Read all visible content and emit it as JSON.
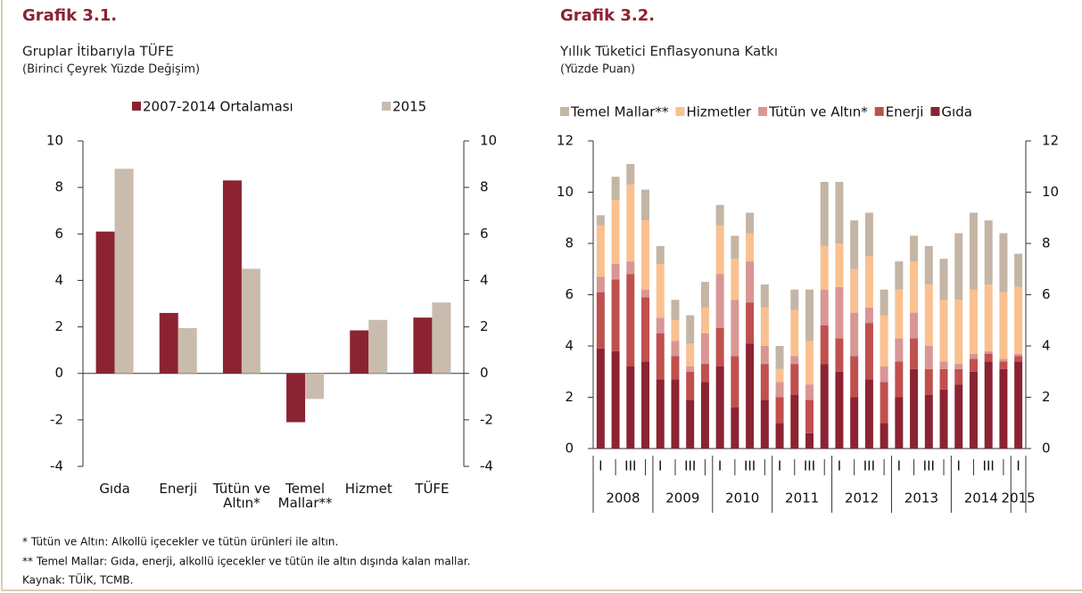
{
  "chart_data": [
    {
      "type": "bar",
      "title": "Grafik 3.1.",
      "subtitle": "Gruplar İtibarıyla TÜFE",
      "note": "(Birinci Çeyrek Yüzde Değişim)",
      "categories": [
        "Gıda",
        "Enerji",
        "Tütün ve Altın*",
        "Temel Mallar**",
        "Hizmet",
        "TÜFE"
      ],
      "series": [
        {
          "name": "2007-2014 Ortalaması",
          "color": "#8b2332",
          "values": [
            6.1,
            2.6,
            8.3,
            -2.1,
            1.85,
            2.4
          ]
        },
        {
          "name": "2015",
          "color": "#c9bcae",
          "values": [
            8.8,
            1.95,
            4.5,
            -1.1,
            2.3,
            3.05
          ]
        }
      ],
      "ylim": [
        -4,
        10
      ],
      "yticks": [
        -4,
        -2,
        0,
        2,
        4,
        6,
        8,
        10
      ],
      "y2lim": [
        -4,
        10
      ],
      "y2ticks": [
        -4,
        -2,
        0,
        2,
        4,
        6,
        8,
        10
      ],
      "legend": "top",
      "grid": false
    },
    {
      "type": "stacked_bar",
      "title": "Grafik 3.2.",
      "subtitle": "Yıllık Tüketici Enflasyonuna Katkı",
      "note": "(Yüzde Puan)",
      "categories": [
        "I",
        null,
        "III",
        null,
        "I",
        null,
        "III",
        null,
        "I",
        null,
        "III",
        null,
        "I",
        null,
        "III",
        null,
        "I",
        null,
        "III",
        null,
        "I",
        null,
        "III",
        null,
        "I",
        null,
        "III",
        null,
        "I"
      ],
      "years": [
        "2008",
        "2009",
        "2010",
        "2011",
        "2012",
        "2013",
        "2014",
        "2015"
      ],
      "series": [
        {
          "name": "Temel Mallar**",
          "color": "#c4b5a5",
          "values": [
            0.4,
            0.9,
            0.8,
            1.2,
            0.7,
            0.8,
            1.1,
            1.0,
            0.8,
            0.9,
            0.8,
            0.9,
            0.9,
            0.8,
            2.0,
            2.5,
            2.4,
            1.9,
            1.7,
            1.0,
            1.1,
            1.0,
            1.5,
            1.6,
            2.6,
            3.0,
            2.5,
            2.3,
            1.3
          ]
        },
        {
          "name": "Hizmetler",
          "color": "#fac090",
          "values": [
            2.0,
            2.5,
            3.0,
            2.7,
            2.1,
            0.8,
            0.9,
            1.0,
            1.9,
            1.6,
            1.1,
            1.5,
            0.5,
            1.8,
            1.7,
            1.7,
            1.7,
            1.7,
            2.0,
            2.0,
            1.9,
            2.0,
            2.4,
            2.4,
            2.5,
            2.5,
            2.6,
            2.6,
            2.6
          ]
        },
        {
          "name": "Tütün ve Altın*",
          "color": "#d99694",
          "values": [
            0.6,
            0.6,
            0.5,
            0.3,
            0.6,
            0.6,
            0.2,
            1.2,
            2.1,
            2.2,
            1.6,
            0.7,
            0.6,
            0.3,
            0.6,
            1.4,
            2.0,
            1.7,
            0.6,
            0.6,
            0.9,
            1.0,
            0.9,
            0.3,
            0.2,
            0.2,
            0.1,
            0.1,
            0.1
          ]
        },
        {
          "name": "Enerji",
          "color": "#c0504d",
          "values": [
            2.2,
            2.8,
            3.6,
            2.5,
            1.8,
            0.9,
            1.1,
            0.7,
            1.5,
            2.0,
            1.6,
            1.4,
            1.0,
            1.2,
            1.3,
            1.5,
            1.3,
            1.6,
            2.2,
            1.6,
            1.4,
            1.2,
            1.0,
            0.8,
            0.6,
            0.5,
            0.3,
            0.3,
            0.2
          ]
        },
        {
          "name": "Gıda",
          "color": "#8b2332",
          "values": [
            3.9,
            3.8,
            3.2,
            3.4,
            2.7,
            2.7,
            1.9,
            2.6,
            3.2,
            1.6,
            4.1,
            1.9,
            1.0,
            2.1,
            0.6,
            3.3,
            3.0,
            2.0,
            2.7,
            1.0,
            2.0,
            3.1,
            2.1,
            2.3,
            2.5,
            3.0,
            3.4,
            3.1,
            3.4
          ]
        }
      ],
      "ylim": [
        0,
        12
      ],
      "yticks": [
        0,
        2,
        4,
        6,
        8,
        10,
        12
      ],
      "y2lim": [
        0,
        12
      ],
      "y2ticks": [
        0,
        2,
        4,
        6,
        8,
        10,
        12
      ],
      "legend": "top",
      "grid": false
    }
  ],
  "footnotes": [
    "* Tütün ve Altın: Alkollü içecekler ve tütün ürünleri ile altın.",
    "** Temel Mallar: Gıda, enerji, alkollü içecekler ve tütün ile altın dışında kalan mallar.",
    "Kaynak: TÜİK, TCMB."
  ]
}
